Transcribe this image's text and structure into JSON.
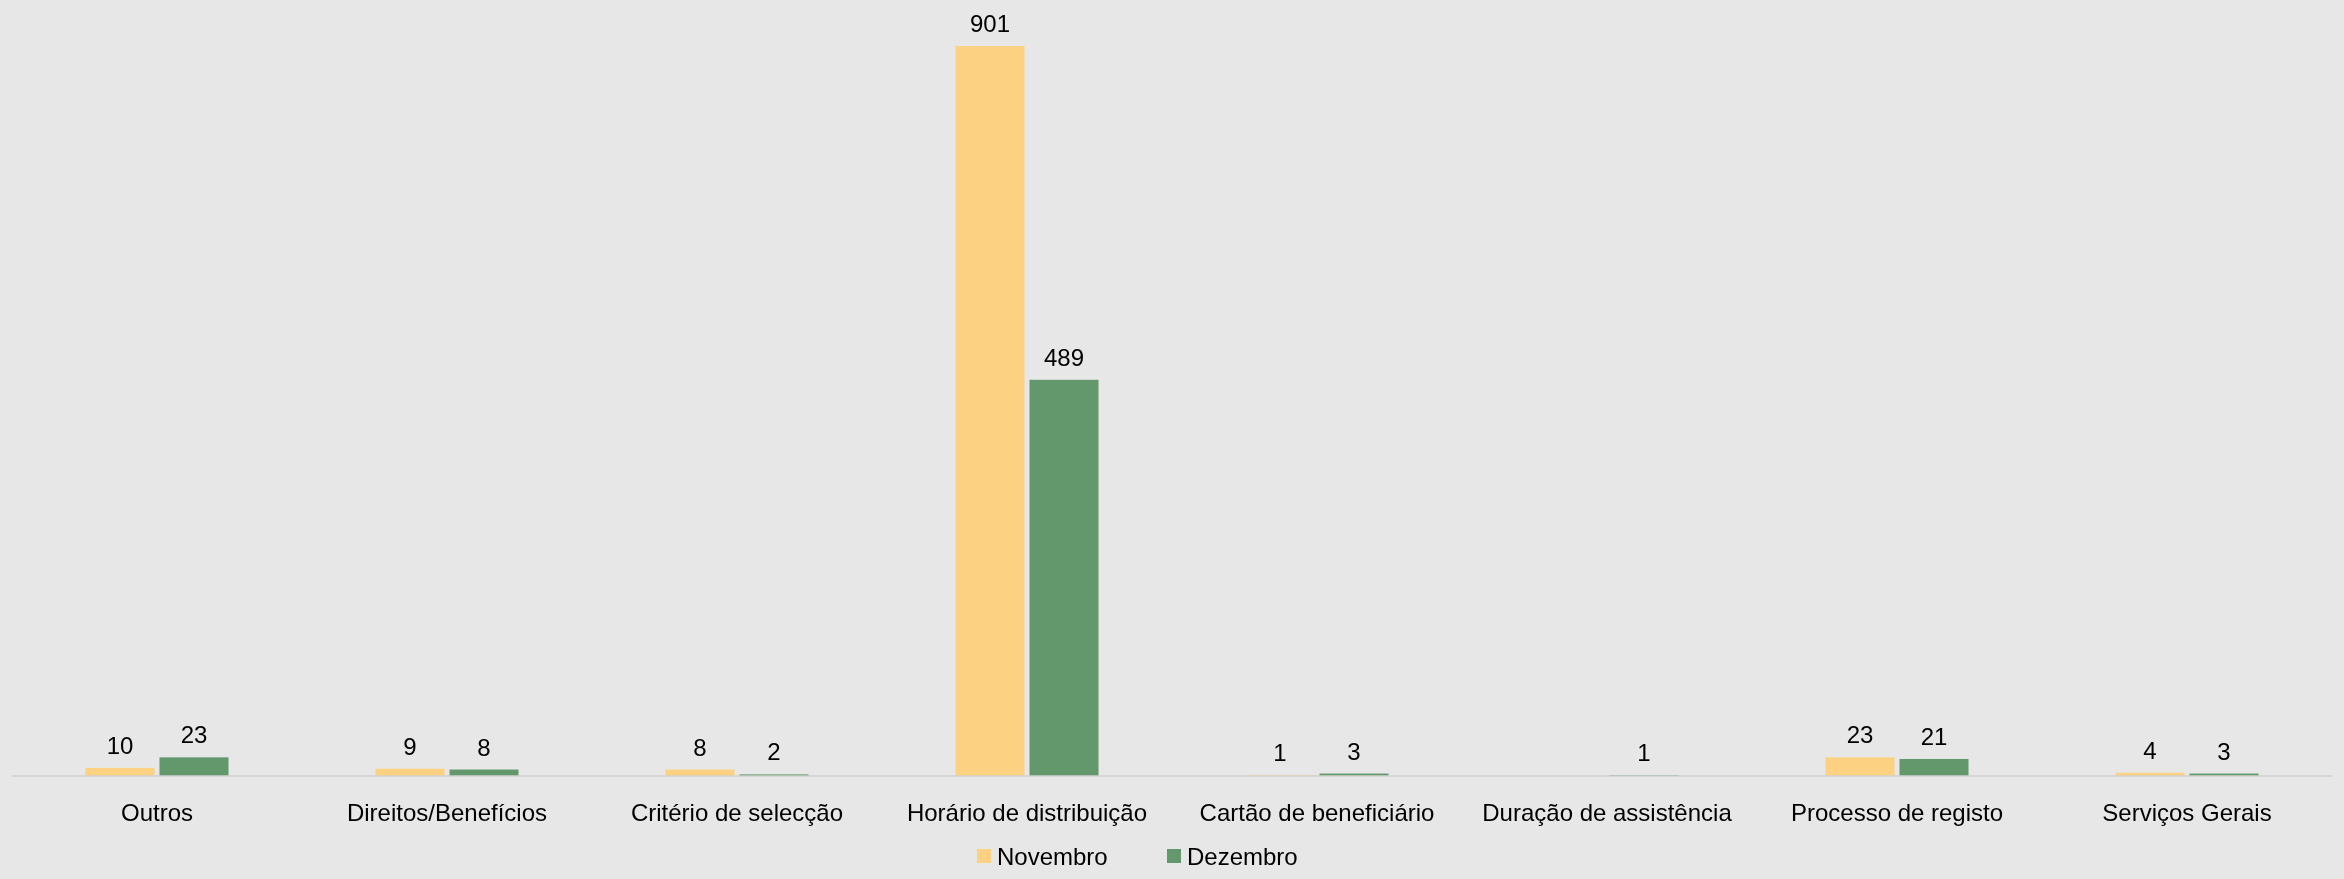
{
  "chart_data": {
    "type": "bar",
    "categories": [
      "Outros",
      "Direitos/Benefícios",
      "Critério de selecção",
      "Horário de distribuição",
      "Cartão de beneficiário",
      "Duração de assistência",
      "Processo de registo",
      "Serviços Gerais"
    ],
    "series": [
      {
        "name": "Novembro",
        "color": "#fdd182",
        "values": [
          10,
          9,
          8,
          901,
          1,
          null,
          23,
          4
        ]
      },
      {
        "name": "Dezembro",
        "color": "#62986b",
        "values": [
          23,
          8,
          2,
          489,
          3,
          1,
          21,
          3
        ]
      }
    ],
    "data_labels": true,
    "legend": "bottom"
  }
}
